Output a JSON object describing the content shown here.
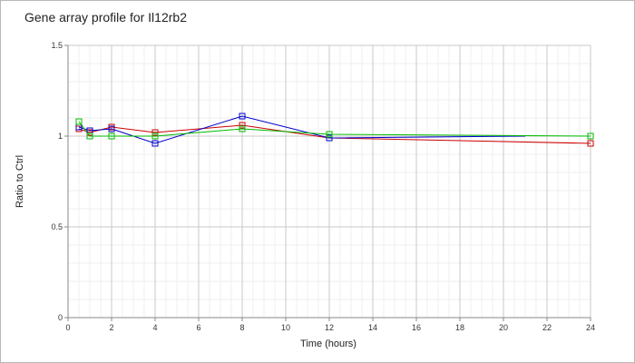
{
  "chart_data": {
    "type": "line",
    "title": "Gene array profile for Il12rb2",
    "xlabel": "Time (hours)",
    "ylabel": "Ratio to Ctrl",
    "xlim": [
      0,
      24
    ],
    "ylim": [
      0,
      1.5
    ],
    "x_ticks": [
      0,
      2,
      4,
      6,
      8,
      10,
      12,
      14,
      16,
      18,
      20,
      22,
      24
    ],
    "y_ticks": [
      0,
      0.5,
      1,
      1.5
    ],
    "y_tick_labels": [
      "0",
      "0.5",
      "1",
      "1.5"
    ],
    "grid": true,
    "legend": "none",
    "series": [
      {
        "color": "#cc0000",
        "x": [
          0.5,
          1,
          2,
          4,
          8,
          12,
          24
        ],
        "y": [
          1.04,
          1.02,
          1.05,
          1.02,
          1.06,
          0.99,
          0.96
        ]
      },
      {
        "color": "#0000cc",
        "x": [
          0.5,
          1,
          2,
          4,
          8,
          12,
          21
        ],
        "y": [
          1.05,
          1.03,
          1.04,
          0.96,
          1.11,
          0.99,
          1.0
        ]
      },
      {
        "color": "#00bb00",
        "x": [
          0.5,
          1,
          2,
          4,
          8,
          12,
          24
        ],
        "y": [
          1.08,
          1.0,
          1.0,
          1.0,
          1.04,
          1.01,
          1.0
        ]
      }
    ]
  }
}
